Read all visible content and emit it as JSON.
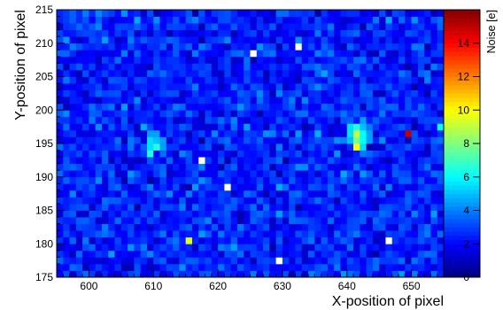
{
  "chart_data": {
    "type": "heatmap",
    "title": "",
    "xlabel": "X-position of pixel",
    "ylabel": "Y-position of pixel",
    "zlabel": "Noise [e]",
    "xlim": [
      595,
      655
    ],
    "ylim": [
      175,
      215
    ],
    "zlim": [
      0,
      16
    ],
    "x_ticks": [
      "600",
      "610",
      "620",
      "630",
      "640",
      "650"
    ],
    "y_ticks": [
      "175",
      "180",
      "185",
      "190",
      "195",
      "200",
      "205",
      "210",
      "215"
    ],
    "z_ticks": [
      "0",
      "2",
      "4",
      "6",
      "8",
      "10",
      "12",
      "14"
    ],
    "colormap": [
      "#00007f",
      "#0000ff",
      "#007fff",
      "#00ffff",
      "#7fff7f",
      "#ffff00",
      "#ff7f00",
      "#ff0000",
      "#7f0000"
    ],
    "background_noise": 2.5,
    "highlighted_pixels": [
      {
        "x": 609,
        "y": 193,
        "z": 6.5
      },
      {
        "x": 609,
        "y": 194,
        "z": 5.5
      },
      {
        "x": 609,
        "y": 195,
        "z": 5.5
      },
      {
        "x": 609,
        "y": 196,
        "z": 4.5
      },
      {
        "x": 610,
        "y": 194,
        "z": 6.5
      },
      {
        "x": 610,
        "y": 195,
        "z": 5.0
      },
      {
        "x": 610,
        "y": 196,
        "z": 4.5
      },
      {
        "x": 611,
        "y": 194,
        "z": 4.5
      },
      {
        "x": 611,
        "y": 195,
        "z": 4.5
      },
      {
        "x": 641,
        "y": 194,
        "z": 10.0
      },
      {
        "x": 641,
        "y": 195,
        "z": 8.0
      },
      {
        "x": 641,
        "y": 196,
        "z": 9.0
      },
      {
        "x": 641,
        "y": 197,
        "z": 6.5
      },
      {
        "x": 640,
        "y": 195,
        "z": 5.0
      },
      {
        "x": 640,
        "y": 196,
        "z": 5.5
      },
      {
        "x": 640,
        "y": 197,
        "z": 5.5
      },
      {
        "x": 642,
        "y": 194,
        "z": 5.5
      },
      {
        "x": 642,
        "y": 195,
        "z": 6.0
      },
      {
        "x": 642,
        "y": 196,
        "z": 6.0
      },
      {
        "x": 642,
        "y": 197,
        "z": 5.0
      },
      {
        "x": 642,
        "y": 198,
        "z": 4.5
      },
      {
        "x": 643,
        "y": 195,
        "z": 4.5
      },
      {
        "x": 643,
        "y": 196,
        "z": 4.5
      },
      {
        "x": 649,
        "y": 196,
        "z": 15.0
      },
      {
        "x": 615,
        "y": 180,
        "z": 9.5
      },
      {
        "x": 654,
        "y": 197,
        "z": 6.0
      },
      {
        "x": 629,
        "y": 184,
        "z": 4.5
      },
      {
        "x": 625,
        "y": 208,
        "z": 0.3
      },
      {
        "x": 632,
        "y": 209,
        "z": 0.3
      },
      {
        "x": 617,
        "y": 192,
        "z": 0.3
      },
      {
        "x": 621,
        "y": 188,
        "z": 0.3
      },
      {
        "x": 646,
        "y": 180,
        "z": 0.3
      },
      {
        "x": 629,
        "y": 177,
        "z": 0.3
      }
    ]
  }
}
